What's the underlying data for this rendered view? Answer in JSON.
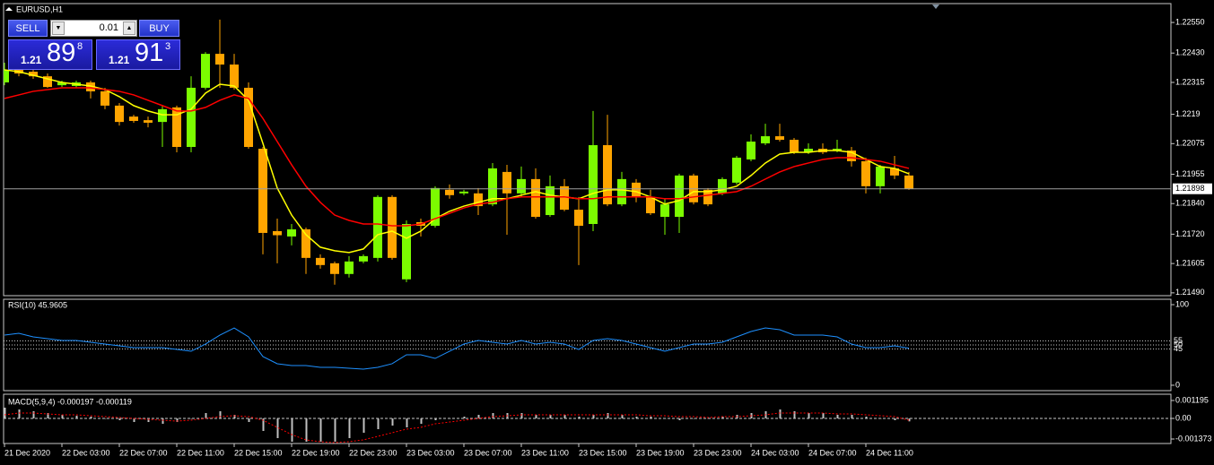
{
  "trade_panel": {
    "sell": "SELL",
    "buy": "BUY",
    "lot": "0.01",
    "bid": {
      "big": "1.21",
      "pips": "89",
      "point": "8"
    },
    "ask": {
      "big": "1.21",
      "pips": "91",
      "point": "3"
    }
  },
  "chart_data": [
    {
      "type": "candlestick",
      "title": "EURUSD,H1",
      "up_color": "#7cfc00",
      "down_color": "#ffa500",
      "open": [
        1.22315,
        1.22364,
        1.22357,
        1.22339,
        1.22304,
        1.22301,
        1.22315,
        1.2228,
        1.22224,
        1.22181,
        1.22167,
        1.2216,
        1.22217,
        1.22062,
        1.22294,
        1.22427,
        1.22385,
        1.22294,
        1.22055,
        1.21732,
        1.21711,
        1.21739,
        1.21627,
        1.21606,
        1.21564,
        1.21613,
        1.21627,
        1.21866,
        1.21543,
        1.21767,
        1.21753,
        1.21894,
        1.2188,
        1.2188,
        1.21837,
        1.21964,
        1.2188,
        1.21936,
        1.21795,
        1.21908,
        1.21816,
        1.2176,
        1.22069,
        1.21837,
        1.21922,
        1.21866,
        1.21788,
        1.21788,
        1.2195,
        1.21894,
        1.2188,
        1.21922,
        1.22013,
        1.22076,
        1.22104,
        1.2209,
        1.22041,
        1.22055,
        1.22048,
        1.22048,
        1.22006,
        1.21908,
        1.21978,
        1.2195
      ],
      "high": [
        1.22392,
        1.22385,
        1.22364,
        1.2235,
        1.22322,
        1.22322,
        1.22322,
        1.22294,
        1.22234,
        1.22188,
        1.22181,
        1.22224,
        1.22224,
        1.22339,
        1.22434,
        1.22561,
        1.22427,
        1.22315,
        1.22062,
        1.21781,
        1.2176,
        1.21746,
        1.21641,
        1.21613,
        1.21634,
        1.21641,
        1.21873,
        1.21873,
        1.21774,
        1.21781,
        1.21908,
        1.21915,
        1.21894,
        1.21901,
        1.21999,
        1.21992,
        1.21985,
        1.21978,
        1.2195,
        1.21936,
        1.21866,
        1.22203,
        1.22188,
        1.21964,
        1.21936,
        1.21894,
        1.21859,
        1.21957,
        1.21957,
        1.21901,
        1.21943,
        1.22027,
        1.22111,
        1.22153,
        1.22153,
        1.22097,
        1.22076,
        1.22076,
        1.2209,
        1.22062,
        1.2202,
        1.21992,
        1.22027,
        1.21964
      ],
      "low": [
        1.22304,
        1.22339,
        1.22329,
        1.22294,
        1.22297,
        1.22294,
        1.22252,
        1.2221,
        1.22146,
        1.22157,
        1.22139,
        1.22062,
        1.22041,
        1.22041,
        1.22287,
        1.22294,
        1.22287,
        1.22055,
        1.21641,
        1.21606,
        1.21676,
        1.21564,
        1.21585,
        1.21522,
        1.2155,
        1.21606,
        1.21613,
        1.2162,
        1.21532,
        1.21711,
        1.21746,
        1.21859,
        1.21873,
        1.21795,
        1.2183,
        1.21718,
        1.21866,
        1.21781,
        1.21788,
        1.2181,
        1.21599,
        1.21732,
        1.2183,
        1.2183,
        1.21845,
        1.21795,
        1.21718,
        1.21725,
        1.21837,
        1.2183,
        1.21873,
        1.21915,
        1.22006,
        1.22069,
        1.22083,
        1.22034,
        1.22034,
        1.22034,
        1.22041,
        1.21985,
        1.2188,
        1.2188,
        1.21936,
        1.21894
      ],
      "close": [
        1.22364,
        1.2235,
        1.22339,
        1.22297,
        1.22315,
        1.22315,
        1.2228,
        1.22224,
        1.2216,
        1.22164,
        1.22157,
        1.2221,
        1.22062,
        1.22294,
        1.22427,
        1.22385,
        1.22294,
        1.22062,
        1.21725,
        1.21716,
        1.21739,
        1.21627,
        1.21599,
        1.21564,
        1.21613,
        1.21634,
        1.21866,
        1.21627,
        1.2176,
        1.21753,
        1.21901,
        1.21873,
        1.21887,
        1.2183,
        1.21978,
        1.2188,
        1.21936,
        1.21788,
        1.21908,
        1.21816,
        1.21753,
        1.22069,
        1.21837,
        1.21936,
        1.21866,
        1.21802,
        1.21837,
        1.2195,
        1.21845,
        1.21837,
        1.21936,
        1.2202,
        1.22083,
        1.22104,
        1.2209,
        1.22041,
        1.22055,
        1.22041,
        1.22055,
        1.22006,
        1.21908,
        1.21985,
        1.2195,
        1.21898
      ],
      "series": [
        {
          "color": "#ffff00",
          "values": [
            1.22364,
            1.22357,
            1.22343,
            1.22329,
            1.22315,
            1.22308,
            1.22301,
            1.22287,
            1.22259,
            1.22224,
            1.22203,
            1.22188,
            1.22188,
            1.2221,
            1.22273,
            1.22308,
            1.22301,
            1.22245,
            1.22076,
            1.21901,
            1.21795,
            1.21718,
            1.21669,
            1.21655,
            1.21648,
            1.21662,
            1.21718,
            1.21732,
            1.21704,
            1.21732,
            1.21781,
            1.2181,
            1.2183,
            1.21845,
            1.21859,
            1.21859,
            1.21873,
            1.21887,
            1.21873,
            1.21866,
            1.21859,
            1.2188,
            1.21894,
            1.21894,
            1.21887,
            1.21866,
            1.21838,
            1.21852,
            1.21887,
            1.21887,
            1.21894,
            1.21908,
            1.2195,
            1.21999,
            1.22034,
            1.22041,
            1.22041,
            1.22048,
            1.22048,
            1.22041,
            1.22013,
            1.21985,
            1.21978,
            1.21957
          ]
        },
        {
          "color": "#ff0000",
          "values": [
            1.22252,
            1.22266,
            1.2228,
            1.22287,
            1.22294,
            1.22294,
            1.22294,
            1.22287,
            1.2228,
            1.22266,
            1.22245,
            1.22224,
            1.22203,
            1.22203,
            1.22217,
            1.22245,
            1.22266,
            1.22252,
            1.22174,
            1.22083,
            1.21992,
            1.21908,
            1.21845,
            1.21795,
            1.21774,
            1.2176,
            1.2176,
            1.21753,
            1.21753,
            1.2176,
            1.21781,
            1.21802,
            1.21823,
            1.21838,
            1.21845,
            1.21859,
            1.21866,
            1.21866,
            1.21866,
            1.21866,
            1.21859,
            1.21859,
            1.21866,
            1.21866,
            1.21866,
            1.21866,
            1.21859,
            1.21859,
            1.21866,
            1.21873,
            1.2188,
            1.21887,
            1.21908,
            1.21936,
            1.21964,
            1.21985,
            1.21999,
            1.22013,
            1.2202,
            1.2202,
            1.22013,
            1.22006,
            1.21992,
            1.21978
          ]
        }
      ],
      "current_price": 1.21898,
      "ylim": [
        1.21479,
        1.22624
      ],
      "yticks": [
        {
          "value": 1.2255,
          "label": "1.22550"
        },
        {
          "value": 1.2243,
          "label": "1.22430"
        },
        1.22315,
        1.2219,
        1.22075,
        1.21955,
        {
          "value": 1.2184,
          "label": "1.21840"
        },
        {
          "value": 1.2172,
          "label": "1.21720"
        },
        1.21605,
        {
          "value": 1.2149,
          "label": "1.21490"
        }
      ]
    },
    {
      "type": "line",
      "title": "RSI(10) 45.9605",
      "series": [
        {
          "color": "#1e90ff",
          "values": [
            62.2,
            64.4,
            60,
            57.8,
            55.6,
            55.6,
            53.3,
            51.1,
            48.9,
            46.7,
            46.7,
            46.7,
            44.4,
            42.2,
            51.1,
            62.2,
            71.1,
            60,
            35.6,
            26.7,
            24.4,
            24.4,
            22.2,
            22.2,
            21.1,
            20,
            22.2,
            26.7,
            37.8,
            37.8,
            33.3,
            42.2,
            51.1,
            55.6,
            53.3,
            51.1,
            55.6,
            51.1,
            53.3,
            51.1,
            44.4,
            55.6,
            57.8,
            55.6,
            51.1,
            46.7,
            42.2,
            46.7,
            51.1,
            51.1,
            53.3,
            60,
            66.7,
            71.1,
            68.9,
            62.2,
            62.2,
            62.2,
            60,
            51.1,
            46.7,
            46.7,
            48.9,
            45.96
          ]
        }
      ],
      "ylim": [
        -6.7,
        106.7
      ],
      "yticks": [
        100,
        0
      ],
      "levels": [
        55,
        50,
        45
      ]
    },
    {
      "type": "bar",
      "title": "MACD(5,9,4) -0.000197 -0.000119",
      "categories": [
        "21 Dec 2020",
        null,
        null,
        null,
        "22 Dec 03:00",
        null,
        null,
        null,
        "22 Dec 07:00",
        null,
        null,
        null,
        "22 Dec 11:00",
        null,
        null,
        null,
        "22 Dec 15:00",
        null,
        null,
        null,
        "22 Dec 19:00",
        null,
        null,
        null,
        "22 Dec 23:00",
        null,
        null,
        null,
        "23 Dec 03:00",
        null,
        null,
        null,
        "23 Dec 07:00",
        null,
        null,
        null,
        "23 Dec 11:00",
        null,
        null,
        null,
        "23 Dec 15:00",
        null,
        null,
        null,
        "23 Dec 19:00",
        null,
        null,
        null,
        "23 Dec 23:00",
        null,
        null,
        null,
        "24 Dec 03:00",
        null,
        null,
        null,
        "24 Dec 07:00",
        null,
        null,
        null,
        "24 Dec 11:00",
        null,
        null,
        null
      ],
      "series": [
        {
          "type": "bar",
          "color": "#c0c0c0",
          "values": [
            0.000716,
            0.000597,
            0.000478,
            0.000358,
            0.000239,
            0.000179,
            0.000119,
            0,
            -0.000119,
            -0.000239,
            -0.000239,
            -0.000358,
            -0.000239,
            0,
            0.000358,
            0.000478,
            0.000239,
            -0.000239,
            -0.000836,
            -0.001313,
            -0.001552,
            -0.001552,
            -0.001552,
            -0.001552,
            -0.001313,
            -0.000955,
            -0.000716,
            -0.000478,
            -0.000597,
            -0.000358,
            -0.000119,
            0,
            0.000119,
            0.000239,
            0.000358,
            0.000358,
            0.000358,
            0.000239,
            0.000239,
            0.000239,
            0.000119,
            0.000239,
            0.000358,
            0.000239,
            0.000119,
            0.000119,
            0,
            -0.000119,
            0,
            0,
            0.000119,
            0.000239,
            0.000358,
            0.000478,
            0.000597,
            0.000478,
            0.000358,
            0.000358,
            0.000239,
            0.000239,
            0.000119,
            0,
            -0.000119,
            -0.000197
          ]
        },
        {
          "type": "line",
          "color": "#ff0000",
          "values": [
            0.000239,
            0.000358,
            0.000358,
            0.000299,
            0.000239,
            0.000239,
            0.000179,
            0.000119,
            6e-05,
            0,
            -6e-05,
            -0.000119,
            -0.000179,
            -0.000119,
            0,
            0.000119,
            0.000179,
            0.000119,
            -0.000119,
            -0.000597,
            -0.001075,
            -0.001433,
            -0.001552,
            -0.001612,
            -0.001552,
            -0.001433,
            -0.001194,
            -0.000955,
            -0.000716,
            -0.000597,
            -0.000358,
            -0.000239,
            -0.000119,
            0,
            0.000119,
            0.000179,
            0.000239,
            0.000239,
            0.000239,
            0.000239,
            0.000239,
            0.000239,
            0.000239,
            0.000239,
            0.000239,
            0.000179,
            0.000179,
            0.000119,
            0.000119,
            6e-05,
            0.000119,
            0.000119,
            0.000179,
            0.000239,
            0.000358,
            0.000358,
            0.000358,
            0.000358,
            0.000299,
            0.000299,
            0.000239,
            0.000179,
            0.000119,
            -0.000119
          ]
        }
      ],
      "zero_line": true,
      "ylim": [
        -0.001672,
        0.001613
      ],
      "yticks": [
        0.001195,
        {
          "value": 0,
          "label": "0.00"
        },
        -0.001373
      ]
    }
  ]
}
